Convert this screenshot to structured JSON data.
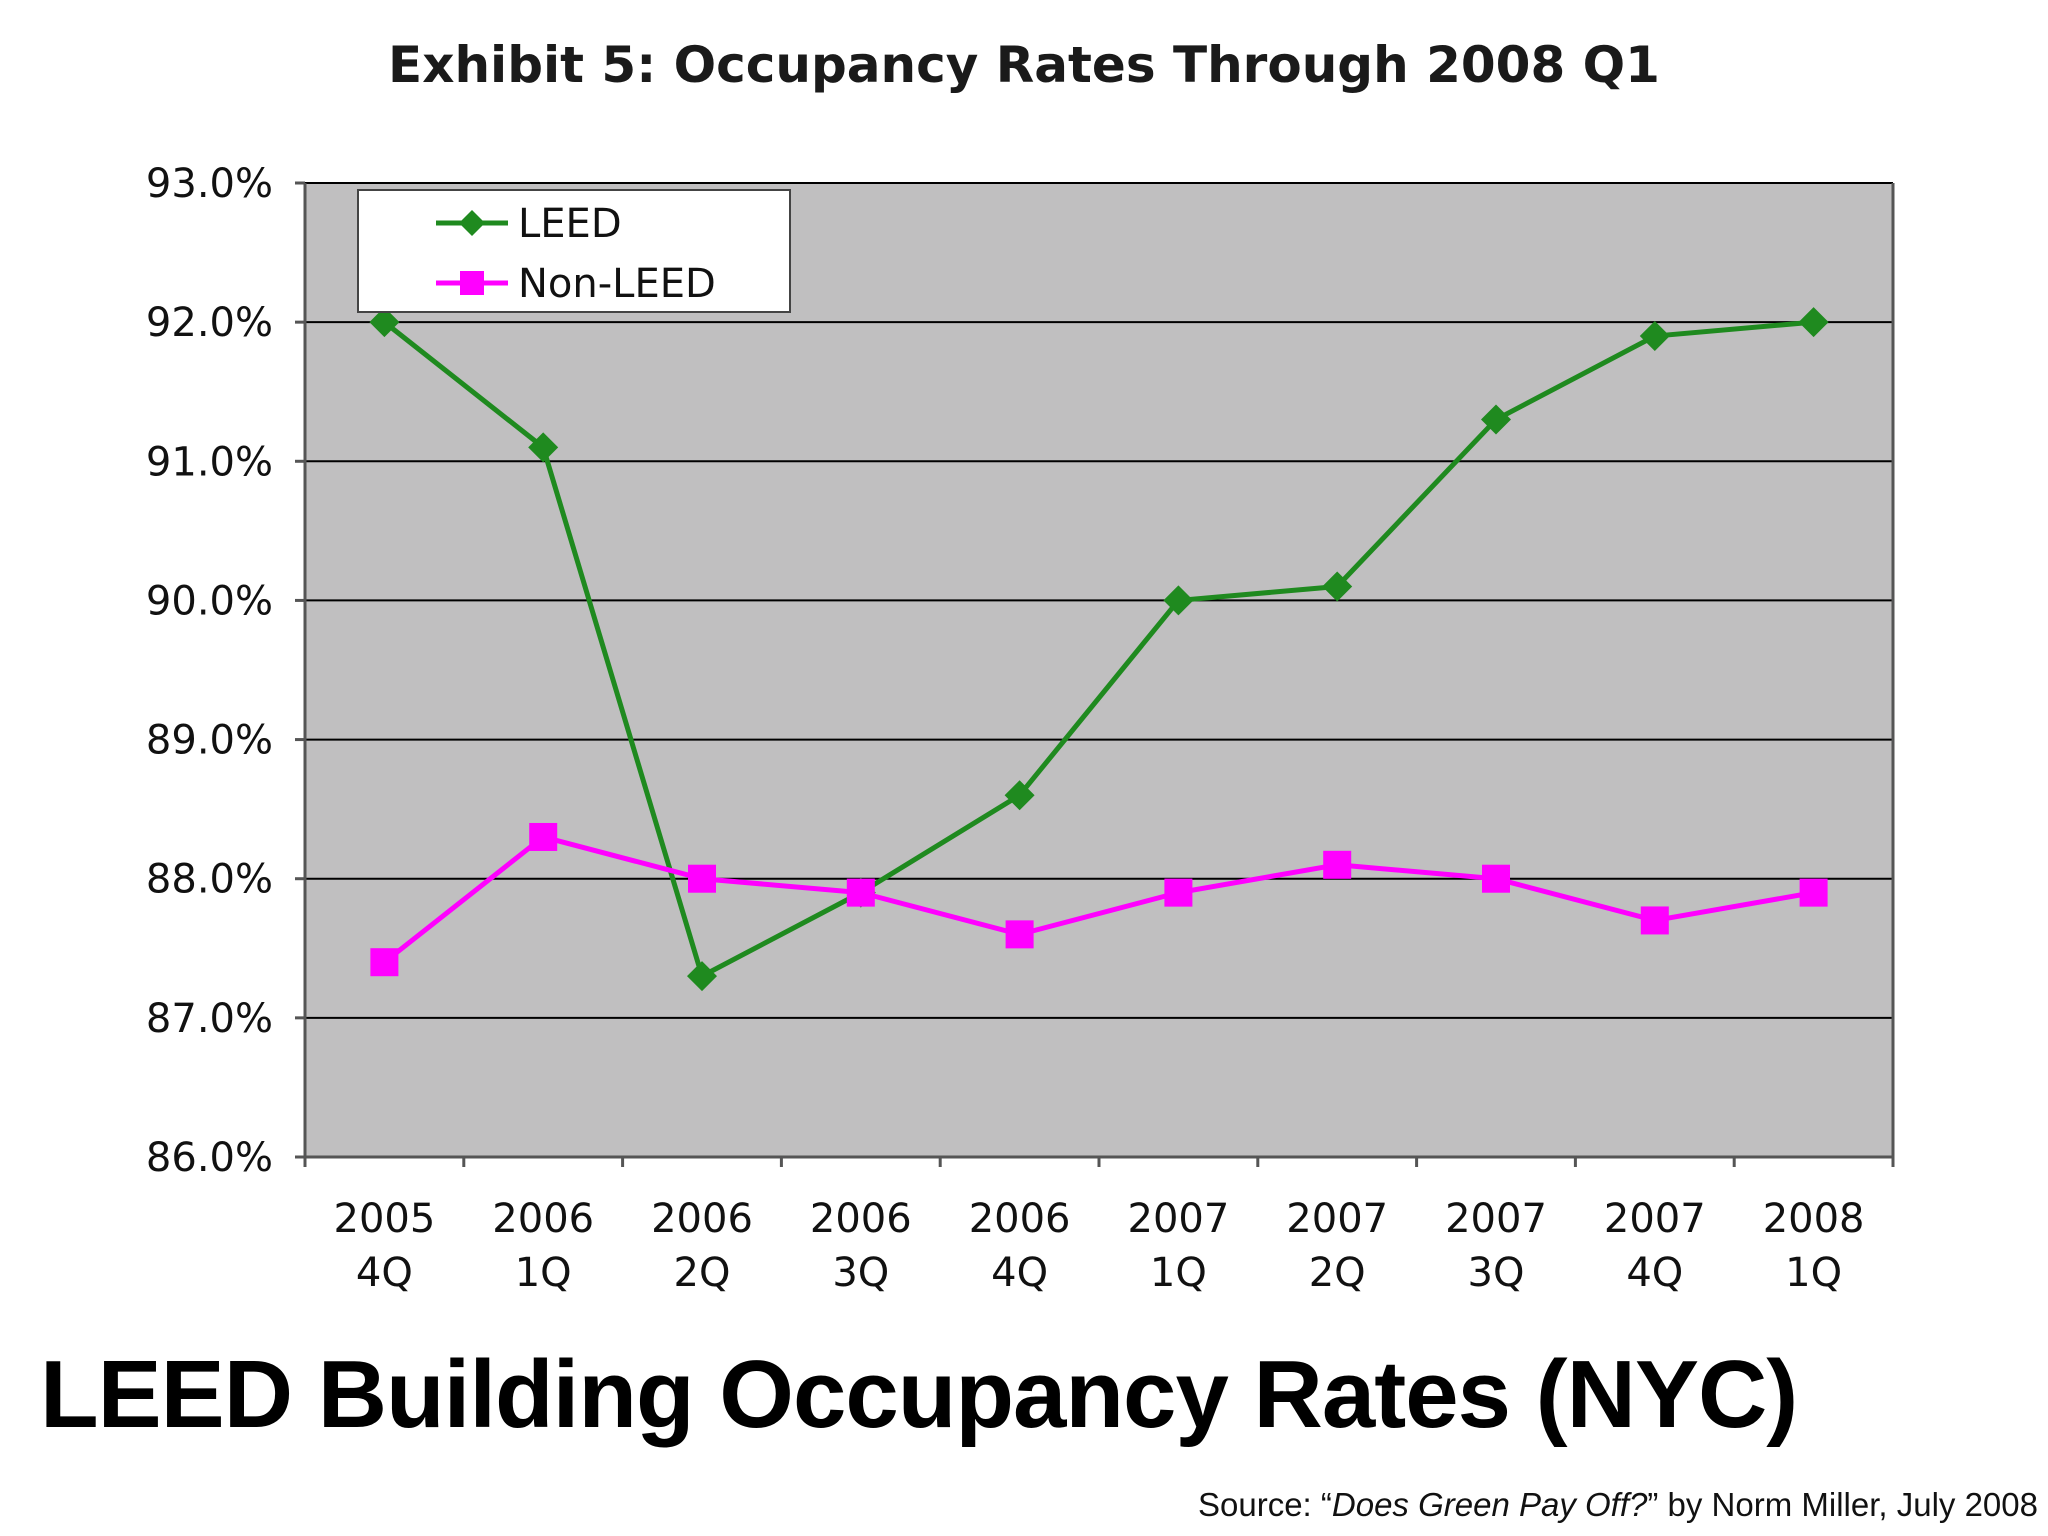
{
  "chart_data": {
    "type": "line",
    "title": "Exhibit 5: Occupancy Rates Through 2008 Q1",
    "xlabel": "",
    "ylabel": "",
    "categories": [
      [
        "2005",
        "4Q"
      ],
      [
        "2006",
        "1Q"
      ],
      [
        "2006",
        "2Q"
      ],
      [
        "2006",
        "3Q"
      ],
      [
        "2006",
        "4Q"
      ],
      [
        "2007",
        "1Q"
      ],
      [
        "2007",
        "2Q"
      ],
      [
        "2007",
        "3Q"
      ],
      [
        "2007",
        "4Q"
      ],
      [
        "2008",
        "1Q"
      ]
    ],
    "ylim": [
      86.0,
      93.0
    ],
    "yticks": [
      86.0,
      87.0,
      88.0,
      89.0,
      90.0,
      91.0,
      92.0,
      93.0
    ],
    "ytick_labels": [
      "86.0%",
      "87.0%",
      "88.0%",
      "89.0%",
      "90.0%",
      "91.0%",
      "92.0%",
      "93.0%"
    ],
    "grid": true,
    "legend_position": "top-left",
    "series": [
      {
        "name": "LEED",
        "color": "#1f8a1f",
        "marker": "diamond",
        "values": [
          92.0,
          91.1,
          87.3,
          87.9,
          88.6,
          90.0,
          90.1,
          91.3,
          91.9,
          92.0
        ]
      },
      {
        "name": "Non-LEED",
        "color": "#ff00ff",
        "marker": "square",
        "values": [
          87.4,
          88.3,
          88.0,
          87.9,
          87.6,
          87.9,
          88.1,
          88.0,
          87.7,
          87.9
        ]
      }
    ]
  },
  "slide": {
    "heading": "LEED Building Occupancy Rates (NYC)",
    "source_prefix": "Source: “",
    "source_title": "Does Green Pay Off?",
    "source_suffix": "” by Norm Miller, July 2008"
  },
  "colors": {
    "plot_background": "#c0bfc0",
    "gridline": "#000000"
  }
}
